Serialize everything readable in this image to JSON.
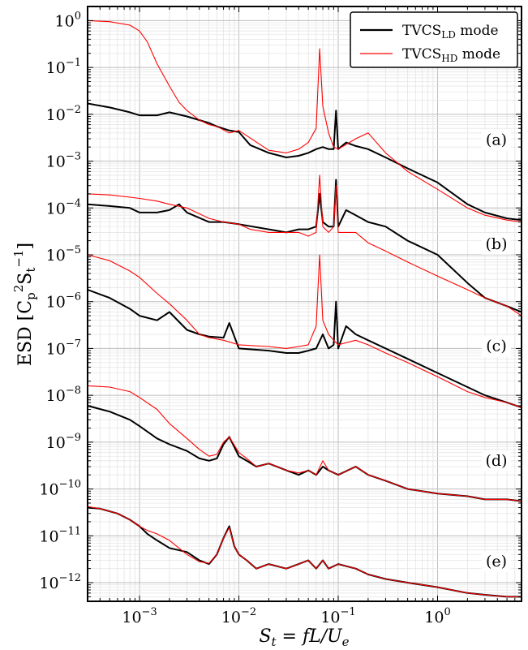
{
  "chart_data": {
    "type": "line",
    "xscale": "log",
    "yscale": "log",
    "xlim": [
      0.0003,
      7
    ],
    "ylim": [
      4e-13,
      2
    ],
    "grid": true,
    "legend_placement": "top-right",
    "xlabel_parts": {
      "var": "S",
      "sub": "t",
      "rest": " = fL/U",
      "sub2": "e"
    },
    "ylabel_parts": {
      "prefix": "ESD [C",
      "sub": "p",
      "sup": "2",
      "mid": "S",
      "sub2": "t",
      "sup2": "−1",
      "suffix": "]"
    },
    "x_ticks": [
      {
        "value": 0.001,
        "base": "10",
        "exp": "−3"
      },
      {
        "value": 0.01,
        "base": "10",
        "exp": "−2"
      },
      {
        "value": 0.1,
        "base": "10",
        "exp": "−1"
      },
      {
        "value": 1,
        "base": "10",
        "exp": "0"
      }
    ],
    "y_ticks": [
      {
        "value": 1,
        "base": "10",
        "exp": "0"
      },
      {
        "value": 0.1,
        "base": "10",
        "exp": "−1"
      },
      {
        "value": 0.01,
        "base": "10",
        "exp": "−2"
      },
      {
        "value": 0.001,
        "base": "10",
        "exp": "−3"
      },
      {
        "value": 0.0001,
        "base": "10",
        "exp": "−4"
      },
      {
        "value": 1e-05,
        "base": "10",
        "exp": "−5"
      },
      {
        "value": 1e-06,
        "base": "10",
        "exp": "−6"
      },
      {
        "value": 1e-07,
        "base": "10",
        "exp": "−7"
      },
      {
        "value": 1e-08,
        "base": "10",
        "exp": "−8"
      },
      {
        "value": 1e-09,
        "base": "10",
        "exp": "−9"
      },
      {
        "value": 1e-10,
        "base": "10",
        "exp": "−10"
      },
      {
        "value": 1e-11,
        "base": "10",
        "exp": "−11"
      },
      {
        "value": 1e-12,
        "base": "10",
        "exp": "−12"
      }
    ],
    "legend": [
      {
        "name": "TVCS",
        "sub": "LD",
        "suffix": " mode",
        "color": "#000000"
      },
      {
        "name": "TVCS",
        "sub": "HD",
        "suffix": " mode",
        "color": "#ff0000"
      }
    ],
    "panels": [
      {
        "label": "(a)",
        "label_y": 0.0025,
        "black": {
          "x": [
            0.0003,
            0.0005,
            0.0008,
            0.001,
            0.0015,
            0.002,
            0.003,
            0.004,
            0.005,
            0.006,
            0.008,
            0.01,
            0.013,
            0.02,
            0.03,
            0.04,
            0.05,
            0.06,
            0.07,
            0.08,
            0.09,
            0.095,
            0.1,
            0.12,
            0.15,
            0.2,
            0.3,
            0.5,
            1,
            2,
            3,
            5,
            7
          ],
          "y": [
            0.017,
            0.014,
            0.011,
            0.0095,
            0.0095,
            0.011,
            0.009,
            0.0075,
            0.0065,
            0.0055,
            0.0045,
            0.0042,
            0.0022,
            0.0015,
            0.0012,
            0.0013,
            0.0015,
            0.0018,
            0.002,
            0.0018,
            0.0018,
            0.012,
            0.0018,
            0.0025,
            0.0021,
            0.0018,
            0.0012,
            0.0007,
            0.00035,
            0.00012,
            8e-05,
            6e-05,
            5.5e-05
          ]
        },
        "red": {
          "x": [
            0.0003,
            0.0005,
            0.0008,
            0.001,
            0.0012,
            0.0015,
            0.002,
            0.0025,
            0.003,
            0.004,
            0.005,
            0.006,
            0.008,
            0.01,
            0.02,
            0.03,
            0.04,
            0.05,
            0.06,
            0.065,
            0.07,
            0.08,
            0.09,
            0.1,
            0.15,
            0.2,
            0.3,
            0.5,
            1,
            2,
            3,
            5,
            7
          ],
          "y": [
            1.0,
            0.95,
            0.8,
            0.6,
            0.35,
            0.12,
            0.04,
            0.018,
            0.012,
            0.0075,
            0.006,
            0.0055,
            0.004,
            0.0045,
            0.0017,
            0.0015,
            0.0018,
            0.0025,
            0.005,
            0.25,
            0.015,
            0.004,
            0.002,
            0.0018,
            0.003,
            0.004,
            0.0015,
            0.0006,
            0.00025,
            0.0001,
            7e-05,
            5.5e-05,
            5e-05
          ]
        }
      },
      {
        "label": "(b)",
        "label_y": 1.5e-05,
        "black": {
          "x": [
            0.0003,
            0.0005,
            0.0008,
            0.001,
            0.0015,
            0.002,
            0.0025,
            0.003,
            0.005,
            0.007,
            0.01,
            0.02,
            0.03,
            0.04,
            0.05,
            0.06,
            0.065,
            0.07,
            0.08,
            0.09,
            0.095,
            0.1,
            0.12,
            0.15,
            0.2,
            0.3,
            0.5,
            1,
            2,
            3,
            5,
            7
          ],
          "y": [
            0.00012,
            0.00011,
            0.0001,
            8e-05,
            8e-05,
            9e-05,
            0.00012,
            8e-05,
            5e-05,
            5e-05,
            4.5e-05,
            3.5e-05,
            3e-05,
            3.5e-05,
            3.5e-05,
            4e-05,
            0.0002,
            5e-05,
            4e-05,
            4e-05,
            0.0004,
            4e-05,
            9e-05,
            7e-05,
            5e-05,
            4e-05,
            2e-05,
            1e-05,
            2.5e-06,
            1.2e-06,
            8e-07,
            6e-07
          ]
        },
        "red": {
          "x": [
            0.0003,
            0.0005,
            0.0008,
            0.001,
            0.0015,
            0.002,
            0.003,
            0.005,
            0.007,
            0.01,
            0.013,
            0.02,
            0.03,
            0.04,
            0.05,
            0.06,
            0.065,
            0.07,
            0.08,
            0.09,
            0.095,
            0.1,
            0.15,
            0.2,
            0.3,
            0.5,
            1,
            2,
            3,
            5,
            7
          ],
          "y": [
            0.0002,
            0.00019,
            0.00017,
            0.00016,
            0.00014,
            0.00012,
            0.0001,
            6e-05,
            5e-05,
            4.5e-05,
            3.5e-05,
            3e-05,
            3e-05,
            3e-05,
            2.5e-05,
            3e-05,
            0.0005,
            4e-05,
            3e-05,
            4e-05,
            0.0003,
            3e-05,
            3e-05,
            1.8e-05,
            1.2e-05,
            7e-06,
            3.5e-06,
            1.8e-06,
            1.2e-06,
            8e-07,
            5e-07
          ]
        }
      },
      {
        "label": "(c)",
        "label_y": 1e-07,
        "black": {
          "x": [
            0.0003,
            0.0005,
            0.0008,
            0.001,
            0.0015,
            0.002,
            0.003,
            0.004,
            0.005,
            0.007,
            0.008,
            0.01,
            0.02,
            0.03,
            0.04,
            0.05,
            0.06,
            0.07,
            0.08,
            0.09,
            0.095,
            0.1,
            0.12,
            0.15,
            0.2,
            0.3,
            0.5,
            1,
            2,
            3,
            5,
            7
          ],
          "y": [
            1.8e-06,
            1.2e-06,
            7e-07,
            5e-07,
            4e-07,
            6e-07,
            2.5e-07,
            2e-07,
            1.8e-07,
            1.7e-07,
            3.5e-07,
            1e-07,
            9e-08,
            8e-08,
            8e-08,
            9e-08,
            1e-07,
            2e-07,
            1e-07,
            1.2e-07,
            1e-06,
            1e-07,
            3e-07,
            2e-07,
            1.5e-07,
            1e-07,
            6e-08,
            3e-08,
            1.5e-08,
            1e-08,
            7e-09,
            5.5e-09
          ]
        },
        "red": {
          "x": [
            0.0003,
            0.0005,
            0.0008,
            0.001,
            0.0015,
            0.002,
            0.003,
            0.004,
            0.005,
            0.007,
            0.01,
            0.02,
            0.03,
            0.04,
            0.05,
            0.06,
            0.065,
            0.07,
            0.08,
            0.09,
            0.1,
            0.15,
            0.2,
            0.3,
            0.5,
            1,
            2,
            3,
            5,
            7
          ],
          "y": [
            1e-05,
            7.5e-06,
            4.5e-06,
            3.3e-06,
            1.5e-06,
            9e-07,
            4e-07,
            2e-07,
            1.7e-07,
            1.5e-07,
            1.2e-07,
            1.1e-07,
            1e-07,
            1.1e-07,
            1.2e-07,
            3e-07,
            1e-05,
            4e-07,
            2e-07,
            1.5e-07,
            1.2e-07,
            1.5e-07,
            1.2e-07,
            8e-08,
            5e-08,
            2.5e-08,
            1.2e-08,
            9e-09,
            7e-09,
            5.5e-09
          ]
        }
      },
      {
        "label": "(d)",
        "label_y": 3.5e-10,
        "black": {
          "x": [
            0.0003,
            0.0005,
            0.0008,
            0.001,
            0.0015,
            0.002,
            0.003,
            0.004,
            0.005,
            0.006,
            0.007,
            0.008,
            0.01,
            0.012,
            0.015,
            0.02,
            0.03,
            0.04,
            0.05,
            0.06,
            0.07,
            0.08,
            0.1,
            0.15,
            0.2,
            0.3,
            0.5,
            1,
            2,
            3,
            5,
            7
          ],
          "y": [
            6e-09,
            4.5e-09,
            3e-09,
            2.2e-09,
            1.2e-09,
            9e-10,
            6.5e-10,
            4.5e-10,
            4e-10,
            4.5e-10,
            9e-10,
            1.3e-09,
            5e-10,
            4e-10,
            3e-10,
            3.5e-10,
            2.5e-10,
            2e-10,
            2.5e-10,
            2e-10,
            3e-10,
            2.5e-10,
            2e-10,
            3e-10,
            2e-10,
            1.5e-10,
            1e-10,
            8e-11,
            7e-11,
            6e-11,
            6e-11,
            5.5e-11
          ]
        },
        "red": {
          "x": [
            0.0003,
            0.0005,
            0.0008,
            0.001,
            0.0015,
            0.002,
            0.003,
            0.004,
            0.005,
            0.006,
            0.007,
            0.008,
            0.01,
            0.012,
            0.015,
            0.02,
            0.03,
            0.04,
            0.05,
            0.06,
            0.07,
            0.08,
            0.1,
            0.15,
            0.2,
            0.3,
            0.5,
            1,
            2,
            3,
            5,
            7
          ],
          "y": [
            1.6e-08,
            1.5e-08,
            1.2e-08,
            9e-09,
            5e-09,
            2.5e-09,
            1.2e-09,
            7e-10,
            5e-10,
            5.5e-10,
            1e-09,
            1.3e-09,
            6e-10,
            4.5e-10,
            3e-10,
            3.5e-10,
            2.5e-10,
            2.2e-10,
            2.5e-10,
            2e-10,
            4e-10,
            2.5e-10,
            2e-10,
            3e-10,
            2e-10,
            1.5e-10,
            1e-10,
            8e-11,
            7e-11,
            6e-11,
            6e-11,
            5.5e-11
          ]
        }
      },
      {
        "label": "(e)",
        "label_y": 2.5e-12,
        "black": {
          "x": [
            0.0003,
            0.0004,
            0.0006,
            0.0008,
            0.001,
            0.0012,
            0.0015,
            0.002,
            0.003,
            0.004,
            0.005,
            0.006,
            0.007,
            0.008,
            0.009,
            0.01,
            0.012,
            0.015,
            0.02,
            0.03,
            0.04,
            0.05,
            0.06,
            0.07,
            0.08,
            0.1,
            0.15,
            0.2,
            0.3,
            0.5,
            1,
            2,
            3,
            5,
            7
          ],
          "y": [
            4e-11,
            3.8e-11,
            3e-11,
            2.2e-11,
            1.6e-11,
            1.1e-11,
            8e-12,
            5.5e-12,
            4.5e-12,
            3e-12,
            2.5e-12,
            4e-12,
            9e-12,
            1.6e-11,
            6e-12,
            4e-12,
            3e-12,
            2e-12,
            2.5e-12,
            2e-12,
            2.5e-12,
            3e-12,
            2e-12,
            3e-12,
            2e-12,
            2.5e-12,
            2e-12,
            1.5e-12,
            1.2e-12,
            1e-12,
            8e-13,
            6e-13,
            5.5e-13,
            5e-13,
            5e-13
          ]
        },
        "red": {
          "x": [
            0.0003,
            0.0004,
            0.0006,
            0.0008,
            0.001,
            0.0012,
            0.0015,
            0.002,
            0.003,
            0.004,
            0.005,
            0.006,
            0.007,
            0.008,
            0.009,
            0.01,
            0.012,
            0.015,
            0.02,
            0.03,
            0.04,
            0.05,
            0.06,
            0.07,
            0.08,
            0.1,
            0.15,
            0.2,
            0.3,
            0.5,
            1,
            2,
            3,
            5,
            7
          ],
          "y": [
            4.2e-11,
            3.8e-11,
            3e-11,
            2.2e-11,
            1.6e-11,
            1.3e-11,
            1.1e-11,
            8e-12,
            4e-12,
            2.8e-12,
            2.6e-12,
            4e-12,
            9e-12,
            1.5e-11,
            6e-12,
            4e-12,
            3e-12,
            2e-12,
            2.5e-12,
            2e-12,
            2.5e-12,
            3e-12,
            2e-12,
            3e-12,
            2e-12,
            2.5e-12,
            2e-12,
            1.5e-12,
            1.2e-12,
            1e-12,
            8e-13,
            6e-13,
            5.5e-13,
            5e-13,
            5e-13
          ]
        }
      }
    ]
  }
}
